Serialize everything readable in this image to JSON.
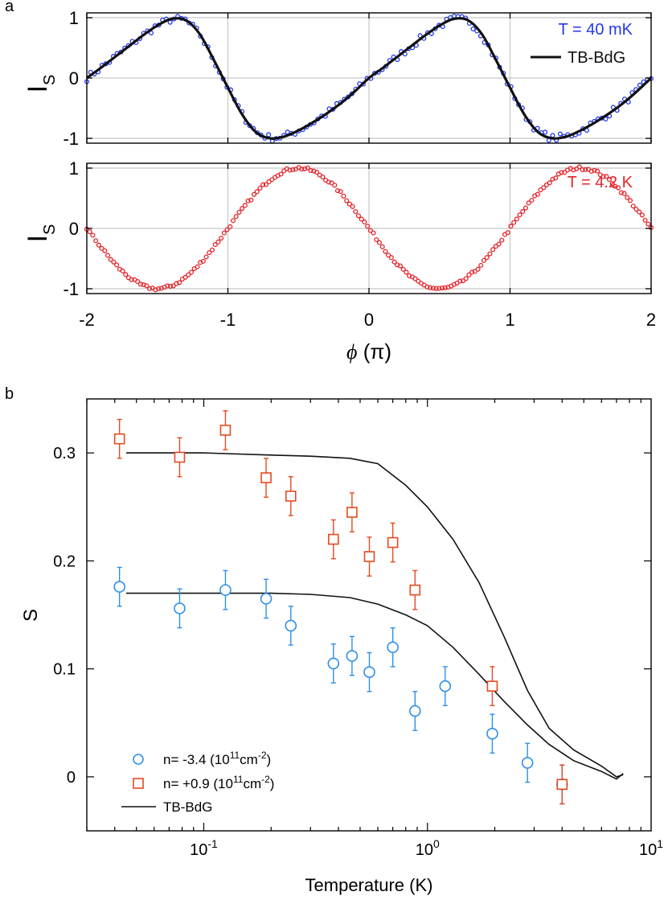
{
  "panel_labels": {
    "a": "a",
    "b": "b"
  },
  "colors": {
    "blue_a": "#2339e8",
    "red_a": "#e4262b",
    "blue_b": "#2e8fe8",
    "red_b": "#e54a1f",
    "line": "#111111",
    "grid": "#c8c8c8"
  },
  "chart_data": [
    {
      "type": "scatter",
      "panel": "a-top",
      "ylabel": "I",
      "ylabel_sub": "S",
      "xlim": [
        -2,
        2
      ],
      "ylim": [
        -1.08,
        1.08
      ],
      "xticks": [
        -2,
        -1,
        0,
        1,
        2
      ],
      "yticks": [
        1,
        0,
        -1
      ],
      "ytick_labels": [
        "1",
        "0",
        "-1"
      ],
      "grid": true,
      "legend": {
        "position": "top-right",
        "entries": [
          "T = 40 mK",
          "TB-BdG"
        ]
      },
      "series": [
        {
          "name": "T = 40 mK",
          "kind": "markers",
          "color": "#2339e8",
          "model": "skewed sine, phase-shifted peak at 0.66π, noisy",
          "amplitude": 1.0,
          "skew": 0.55,
          "n_points": 150
        },
        {
          "name": "TB-BdG",
          "kind": "line",
          "color": "#111111",
          "x": [
            -2.0,
            -1.9,
            -1.8,
            -1.7,
            -1.6,
            -1.5,
            -1.4,
            -1.3,
            -1.2,
            -1.1,
            -1.0,
            -0.9,
            -0.8,
            -0.7,
            -0.6,
            -0.5,
            -0.4,
            -0.3,
            -0.2,
            -0.1,
            0.0,
            0.1,
            0.2,
            0.3,
            0.4,
            0.5,
            0.6,
            0.7,
            0.8,
            0.9,
            1.0,
            1.1,
            1.2,
            1.3,
            1.4,
            1.5,
            1.6,
            1.7,
            1.8,
            1.9,
            2.0
          ],
          "y": [
            0.0,
            0.17,
            0.35,
            0.53,
            0.71,
            0.87,
            0.98,
            0.96,
            0.73,
            0.3,
            -0.16,
            -0.6,
            -0.9,
            -1.0,
            -0.97,
            -0.87,
            -0.74,
            -0.59,
            -0.42,
            -0.22,
            0.0,
            0.17,
            0.35,
            0.53,
            0.71,
            0.87,
            0.98,
            0.96,
            0.73,
            0.3,
            -0.16,
            -0.6,
            -0.9,
            -1.0,
            -0.97,
            -0.87,
            -0.74,
            -0.59,
            -0.42,
            -0.22,
            0.0
          ]
        }
      ]
    },
    {
      "type": "scatter",
      "panel": "a-bottom",
      "ylabel": "I",
      "ylabel_sub": "S",
      "xlabel_symbol": "ϕ",
      "xlabel_unit": "(π)",
      "xlim": [
        -2,
        2
      ],
      "ylim": [
        -1.08,
        1.08
      ],
      "xticks": [
        -2,
        -1,
        0,
        1,
        2
      ],
      "xtick_labels": [
        "-2",
        "-1",
        "0",
        "1",
        "2"
      ],
      "yticks": [
        1,
        0,
        -1
      ],
      "ytick_labels": [
        "1",
        "0",
        "-1"
      ],
      "grid": true,
      "legend": {
        "position": "top-right",
        "entries": [
          "T = 4.2 K"
        ]
      },
      "series": [
        {
          "name": "T = 4.2 K",
          "kind": "markers",
          "color": "#e4262b",
          "model": "sine: y = -sin(π·ϕ), light noise",
          "amplitude": 1.0,
          "n_points": 190
        }
      ]
    },
    {
      "type": "scatter",
      "panel": "b",
      "xlabel": "Temperature (K)",
      "ylabel": "S",
      "xscale": "log",
      "xlim": [
        0.03,
        10
      ],
      "ylim": [
        -0.05,
        0.35
      ],
      "xticks": [
        0.1,
        1,
        10
      ],
      "xtick_labels": [
        {
          "base": "10",
          "exp": "-1"
        },
        {
          "base": "10",
          "exp": "0"
        },
        {
          "base": "10",
          "exp": "1"
        }
      ],
      "yticks": [
        0,
        0.1,
        0.2,
        0.3
      ],
      "ytick_labels": [
        "0",
        "0.1",
        "0.2",
        "0.3"
      ],
      "grid": false,
      "legend": {
        "position": "bottom-left"
      },
      "series": [
        {
          "name": "n= -3.4 (10¹¹cm⁻²)",
          "label_pre": "n= -3.4 (10",
          "label_sup1": "11",
          "label_mid": "cm",
          "label_sup2": "-2",
          "label_post": ")",
          "marker": "circle",
          "color": "#2e8fe8",
          "x": [
            0.042,
            0.078,
            0.125,
            0.19,
            0.245,
            0.38,
            0.46,
            0.55,
            0.7,
            0.88,
            1.2,
            1.95,
            2.8,
            4.0
          ],
          "y": [
            0.176,
            0.156,
            0.173,
            0.165,
            0.14,
            0.105,
            0.112,
            0.097,
            0.12,
            0.061,
            0.084,
            0.04,
            0.013,
            -0.007
          ],
          "err": [
            0.018,
            0.018,
            0.018,
            0.018,
            0.018,
            0.018,
            0.018,
            0.018,
            0.018,
            0.018,
            0.018,
            0.018,
            0.018,
            0.018
          ]
        },
        {
          "name": "n= +0.9 (10¹¹cm⁻²)",
          "label_pre": "n= +0.9 (10",
          "label_sup1": "11",
          "label_mid": "cm",
          "label_sup2": "-2",
          "label_post": ")",
          "marker": "square",
          "color": "#e54a1f",
          "x": [
            0.042,
            0.078,
            0.125,
            0.19,
            0.245,
            0.38,
            0.46,
            0.55,
            0.7,
            0.88,
            1.95,
            4.0
          ],
          "y": [
            0.313,
            0.296,
            0.321,
            0.277,
            0.26,
            0.22,
            0.245,
            0.204,
            0.217,
            0.173,
            0.084,
            -0.007
          ],
          "err": [
            0.018,
            0.018,
            0.018,
            0.018,
            0.018,
            0.018,
            0.018,
            0.018,
            0.018,
            0.018,
            0.018,
            0.018
          ]
        },
        {
          "name": "TB-BdG",
          "kind": "line",
          "color": "#111111",
          "curves": [
            {
              "x": [
                0.045,
                0.1,
                0.2,
                0.3,
                0.45,
                0.6,
                0.8,
                1.0,
                1.3,
                1.7,
                2.2,
                2.8,
                3.5,
                4.5,
                6.0,
                7.0,
                7.5
              ],
              "y": [
                0.3,
                0.3,
                0.298,
                0.297,
                0.295,
                0.29,
                0.27,
                0.25,
                0.22,
                0.18,
                0.13,
                0.08,
                0.045,
                0.025,
                0.01,
                0.0,
                0.002
              ]
            },
            {
              "x": [
                0.045,
                0.1,
                0.2,
                0.3,
                0.45,
                0.6,
                0.8,
                1.0,
                1.3,
                1.7,
                2.2,
                2.8,
                3.5,
                4.5,
                6.0,
                7.0,
                7.5
              ],
              "y": [
                0.17,
                0.17,
                0.17,
                0.169,
                0.166,
                0.16,
                0.15,
                0.14,
                0.12,
                0.095,
                0.07,
                0.048,
                0.03,
                0.015,
                0.005,
                -0.002,
                0.003
              ]
            }
          ]
        }
      ]
    }
  ]
}
